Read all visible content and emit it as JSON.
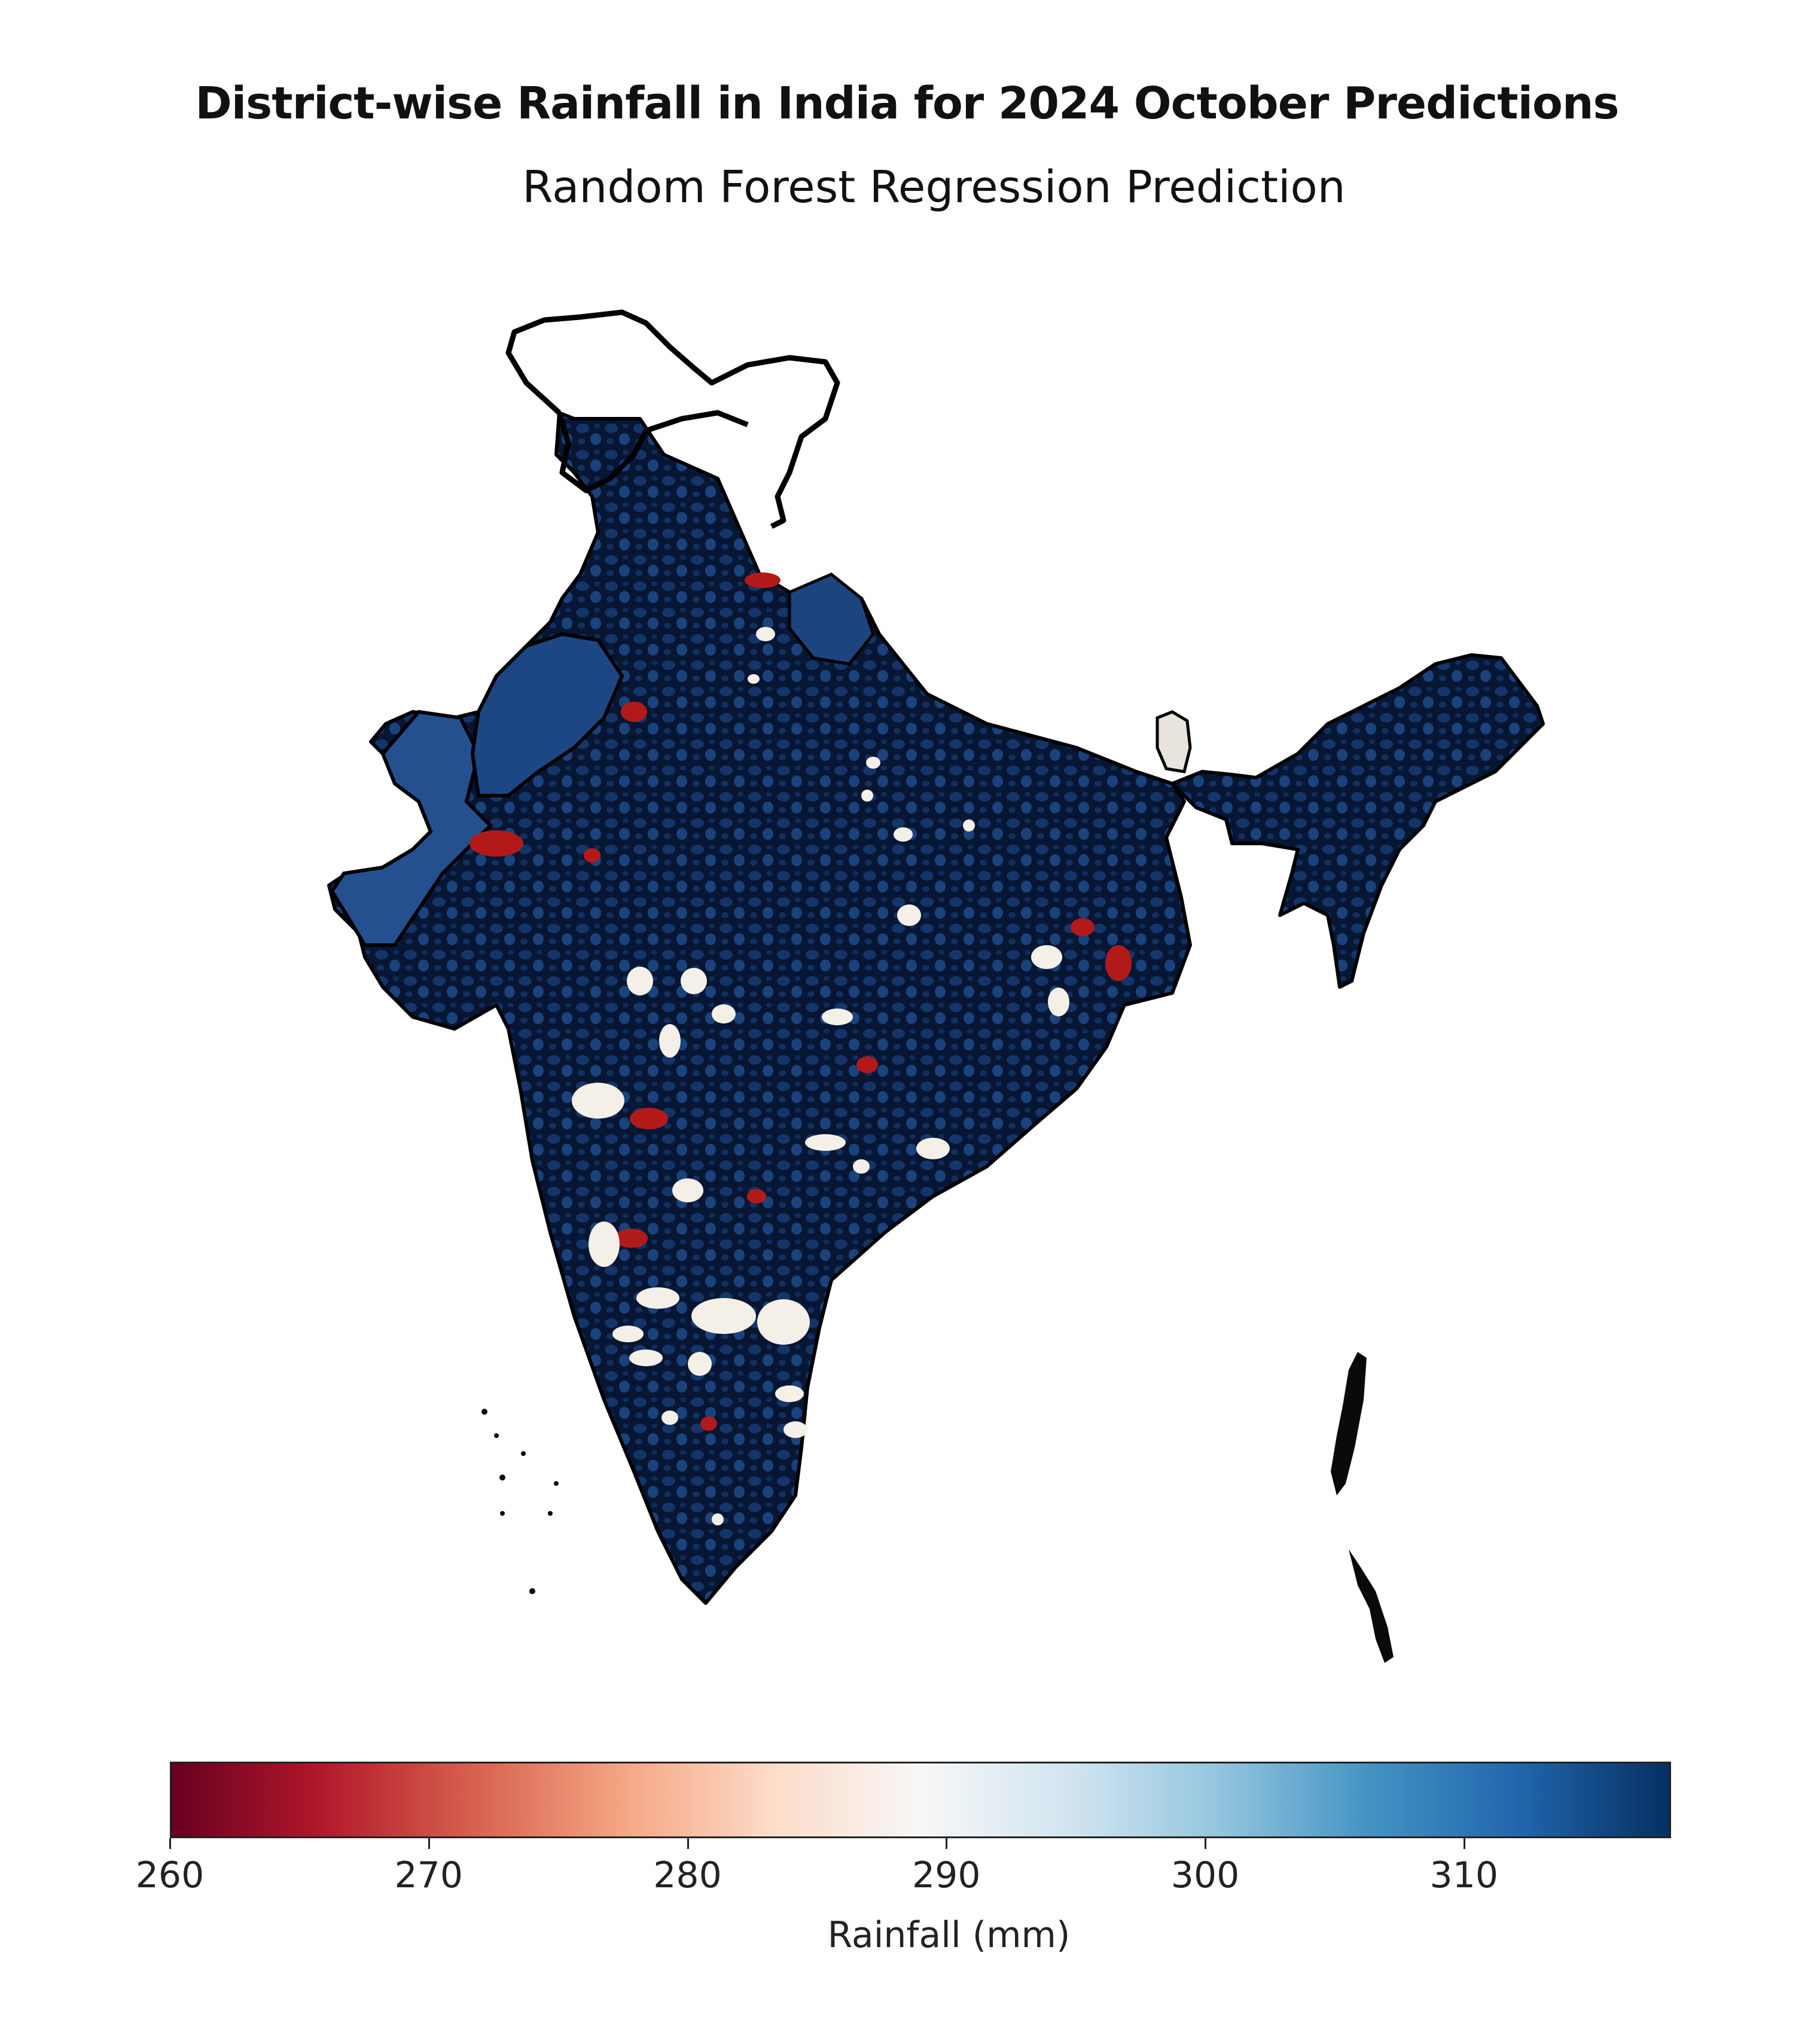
{
  "title": "District-wise Rainfall in India for 2024 October Predictions",
  "subtitle": "Random Forest Regression Prediction",
  "colorbar": {
    "label": "Rainfall (mm)",
    "colormap": "RdBu",
    "range": [
      260,
      318
    ],
    "ticks": [
      {
        "value": 260,
        "label": "260"
      },
      {
        "value": 270,
        "label": "270"
      },
      {
        "value": 280,
        "label": "280"
      },
      {
        "value": 290,
        "label": "290"
      },
      {
        "value": 300,
        "label": "300"
      },
      {
        "value": 310,
        "label": "310"
      }
    ],
    "colors": [
      "#67001f",
      "#b2182b",
      "#d6604d",
      "#f4a582",
      "#fddbc7",
      "#f7f7f7",
      "#d1e5f0",
      "#92c5de",
      "#4393c3",
      "#2166ac",
      "#053061"
    ]
  },
  "map": {
    "region": "India",
    "dominant_color": "#0b2045",
    "district_color": "#1a3f78",
    "boundary_color": "#000000",
    "low_rainfall_color": "#b21a1a",
    "mid_rainfall_color": "#f4f0e8"
  }
}
